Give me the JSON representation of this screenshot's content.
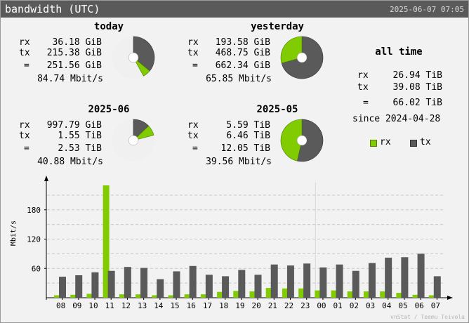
{
  "title": "bandwidth (UTC)",
  "timestamp": "2025-06-07 07:05",
  "colors": {
    "rx": "#80cc00",
    "tx": "#5a5a5a",
    "pie_bg": "#f0f0f0"
  },
  "blocks": [
    {
      "header": "today",
      "rx": "36.18 GiB",
      "tx": "215.38 GiB",
      "total": "251.56 GiB",
      "rate": "84.74 Mbit/s",
      "usage_fraction": 0.42
    },
    {
      "header": "yesterday",
      "rx": "193.58 GiB",
      "tx": "468.75 GiB",
      "total": "662.34 GiB",
      "rate": "65.85 Mbit/s",
      "usage_fraction": 1.0
    },
    {
      "header": "2025-06",
      "rx": "997.79 GiB",
      "tx": "1.55 TiB",
      "total": "2.53 TiB",
      "rate": "40.88 Mbit/s",
      "usage_fraction": 0.21
    },
    {
      "header": "2025-05",
      "rx": "5.59 TiB",
      "tx": "6.46 TiB",
      "total": "12.05 TiB",
      "rate": "39.56 Mbit/s",
      "usage_fraction": 1.0
    }
  ],
  "row_labels": {
    "rx": "rx",
    "tx": "tx",
    "total": "="
  },
  "all_time": {
    "header": "all time",
    "rx_label": "rx",
    "rx": "26.94 TiB",
    "tx_label": "tx",
    "tx": "39.08 TiB",
    "total_label": "=",
    "total": "66.02 TiB",
    "since": "since 2024-04-28"
  },
  "legend": {
    "rx": "rx",
    "tx": "tx"
  },
  "footer": "vnStat / Teemu Toivola",
  "chart_data": {
    "type": "bar",
    "ylabel": "Mbit/s",
    "yticks": [
      60,
      120,
      180
    ],
    "ylim": [
      0,
      230
    ],
    "categories": [
      "08",
      "09",
      "10",
      "11",
      "12",
      "13",
      "14",
      "15",
      "16",
      "17",
      "18",
      "19",
      "20",
      "21",
      "22",
      "23",
      "00",
      "01",
      "02",
      "03",
      "04",
      "05",
      "06",
      "07"
    ],
    "day_boundary_after": "23",
    "series": [
      {
        "name": "rx",
        "values": [
          5,
          6,
          8,
          230,
          7,
          7,
          5,
          5,
          7,
          7,
          12,
          14,
          13,
          20,
          19,
          19,
          15,
          15,
          13,
          13,
          13,
          10,
          6,
          5
        ]
      },
      {
        "name": "tx",
        "values": [
          43,
          46,
          52,
          55,
          63,
          61,
          38,
          54,
          65,
          47,
          44,
          57,
          47,
          68,
          66,
          70,
          62,
          68,
          55,
          71,
          82,
          83,
          90,
          44
        ]
      }
    ]
  }
}
